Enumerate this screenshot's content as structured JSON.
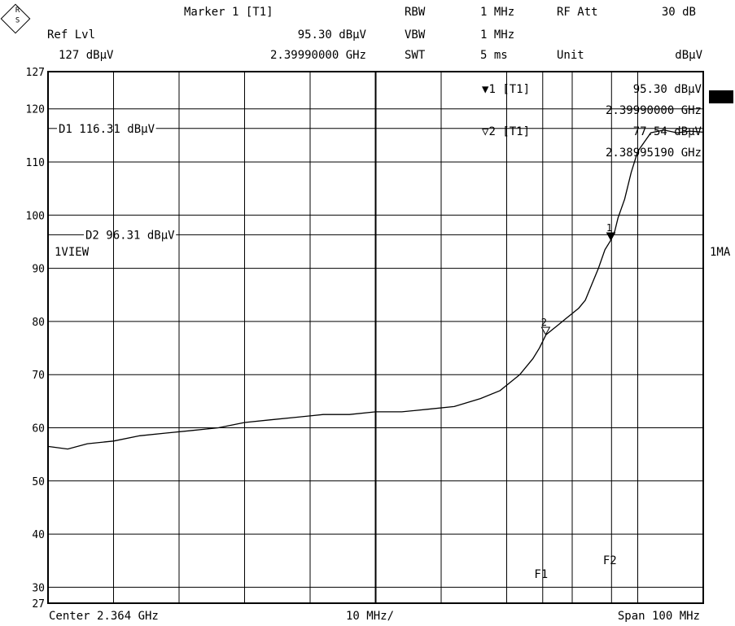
{
  "header": {
    "marker_label": "Marker 1 [T1]",
    "ref_lvl_label": "Ref Lvl",
    "ref_lvl_value": "127 dBµV",
    "marker_level": "95.30 dBµV",
    "marker_freq": "2.39990000 GHz",
    "rbw_label": "RBW",
    "rbw_value": "1 MHz",
    "vbw_label": "VBW",
    "vbw_value": "1 MHz",
    "swt_label": "SWT",
    "swt_value": "5 ms",
    "rfatt_label": "RF Att",
    "rfatt_value": "30 dB",
    "unit_label": "Unit",
    "unit_value": "dBµV"
  },
  "logo": {
    "letters": "R&S"
  },
  "footer": {
    "center": "Center 2.364 GHz",
    "div": "10 MHz/",
    "span": "Span 100 MHz"
  },
  "side_labels": {
    "view": "1VIEW",
    "mode": "1MA"
  },
  "marker_table": {
    "m1_label": "1 [T1]",
    "m1_level": "95.30 dBµV",
    "m1_freq": "2.39990000 GHz",
    "m2_label": "2 [T1]",
    "m2_level": "77.54 dBµV",
    "m2_freq": "2.38995190 GHz"
  },
  "chart_data": {
    "type": "line",
    "x_unit": "GHz",
    "xlim": [
      2.314,
      2.414
    ],
    "ylim": [
      27,
      127
    ],
    "y_ticks": [
      127,
      120,
      110,
      100,
      90,
      80,
      70,
      60,
      50,
      40,
      30,
      27
    ],
    "grid": true,
    "display_lines": [
      {
        "label": "D1 116.31 dBµV",
        "value": 116.31
      },
      {
        "label": "D2 96.31 dBµV",
        "value": 96.31
      }
    ],
    "freq_lines": [
      {
        "label": "F1",
        "freq": 2.3895
      },
      {
        "label": "F2",
        "freq": 2.4
      }
    ],
    "markers": [
      {
        "id": "1",
        "freq": 2.3999,
        "level": 95.3
      },
      {
        "id": "2",
        "freq": 2.38995,
        "level": 77.54
      }
    ],
    "series": [
      {
        "x": [
          2.314,
          2.317,
          2.32,
          2.324,
          2.328,
          2.332,
          2.336,
          2.34,
          2.344,
          2.348,
          2.352,
          2.356,
          2.36,
          2.364,
          2.368,
          2.372,
          2.376,
          2.38,
          2.383,
          2.386,
          2.388,
          2.389,
          2.39,
          2.391,
          2.392,
          2.393,
          2.394,
          2.395,
          2.396,
          2.397,
          2.398,
          2.399,
          2.3999,
          2.4005,
          2.401,
          2.402,
          2.403,
          2.404,
          2.406,
          2.408,
          2.41,
          2.412,
          2.414
        ],
        "y": [
          56.5,
          56.0,
          57.0,
          57.5,
          58.5,
          59.0,
          59.5,
          60.0,
          61.0,
          61.5,
          62.0,
          62.5,
          62.5,
          63.0,
          63.0,
          63.5,
          64.0,
          65.5,
          67.0,
          70.0,
          73.0,
          75.0,
          77.5,
          78.5,
          79.5,
          80.5,
          81.5,
          82.5,
          84.0,
          87.0,
          90.0,
          93.5,
          95.3,
          97.0,
          99.5,
          103.0,
          108.0,
          112.0,
          115.5,
          116.0,
          115.5,
          115.8,
          115.6
        ]
      }
    ]
  }
}
